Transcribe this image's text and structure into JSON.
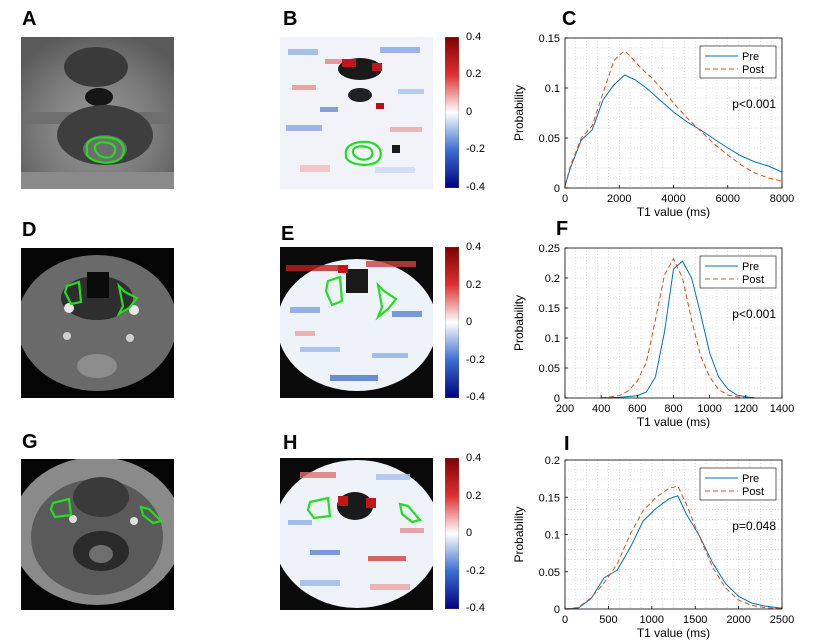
{
  "panels": {
    "letters": [
      "A",
      "B",
      "C",
      "D",
      "E",
      "F",
      "G",
      "H",
      "I"
    ]
  },
  "colorbar": {
    "ticks": [
      "0.4",
      "0.2",
      "0",
      "-0.2",
      "-0.4"
    ],
    "colors": {
      "top": "#7f0000",
      "upper": "#e03030",
      "mid": "#ffffff",
      "lower": "#3a6fd0",
      "bottom": "#00007f"
    }
  },
  "colors": {
    "contour": "#22dd22",
    "pre": "#0072bd",
    "post": "#d95319"
  },
  "chart_data": [
    {
      "type": "line",
      "panel": "C",
      "xlabel": "T1 value (ms)",
      "ylabel": "Probability",
      "xlim": [
        0,
        8000
      ],
      "ylim": [
        0,
        0.15
      ],
      "xticks": [
        "0",
        "2000",
        "4000",
        "6000",
        "8000"
      ],
      "yticks": [
        "0",
        "0.05",
        "0.1",
        "0.15"
      ],
      "pvalue": "p<0.001",
      "legend": [
        "Pre",
        "Post"
      ],
      "series": [
        {
          "name": "Pre",
          "x": [
            0,
            200,
            600,
            1000,
            1400,
            1800,
            2200,
            2600,
            3000,
            3500,
            4000,
            4500,
            5000,
            5500,
            6000,
            6500,
            7000,
            7500,
            8000
          ],
          "values": [
            0.002,
            0.02,
            0.048,
            0.058,
            0.088,
            0.103,
            0.113,
            0.108,
            0.1,
            0.088,
            0.076,
            0.066,
            0.058,
            0.049,
            0.04,
            0.032,
            0.026,
            0.022,
            0.016
          ]
        },
        {
          "name": "Post",
          "x": [
            0,
            200,
            600,
            1000,
            1400,
            1800,
            2000,
            2200,
            2400,
            2800,
            3200,
            3600,
            4000,
            4500,
            5000,
            5500,
            6000,
            6500,
            7000,
            7500,
            8000
          ],
          "values": [
            0.002,
            0.022,
            0.05,
            0.062,
            0.095,
            0.127,
            0.133,
            0.137,
            0.132,
            0.12,
            0.11,
            0.098,
            0.085,
            0.07,
            0.057,
            0.044,
            0.033,
            0.023,
            0.015,
            0.01,
            0.007
          ]
        }
      ]
    },
    {
      "type": "line",
      "panel": "F",
      "xlabel": "T1 value (ms)",
      "ylabel": "Probability",
      "xlim": [
        200,
        1400
      ],
      "ylim": [
        0,
        0.25
      ],
      "xticks": [
        "200",
        "400",
        "600",
        "800",
        "1000",
        "1200",
        "1400"
      ],
      "yticks": [
        "0",
        "0.05",
        "0.1",
        "0.15",
        "0.2",
        "0.25"
      ],
      "pvalue": "p<0.001",
      "legend": [
        "Pre",
        "Post"
      ],
      "series": [
        {
          "name": "Pre",
          "x": [
            400,
            500,
            600,
            650,
            700,
            750,
            800,
            850,
            900,
            950,
            1000,
            1050,
            1100,
            1150,
            1200,
            1250
          ],
          "values": [
            0,
            0.001,
            0.004,
            0.01,
            0.035,
            0.11,
            0.215,
            0.228,
            0.2,
            0.14,
            0.075,
            0.035,
            0.015,
            0.005,
            0.002,
            0
          ]
        },
        {
          "name": "Post",
          "x": [
            400,
            500,
            550,
            600,
            650,
            700,
            750,
            800,
            850,
            900,
            950,
            1000,
            1050,
            1100,
            1150,
            1200
          ],
          "values": [
            0,
            0.004,
            0.012,
            0.028,
            0.06,
            0.13,
            0.205,
            0.232,
            0.2,
            0.13,
            0.07,
            0.035,
            0.014,
            0.005,
            0.002,
            0
          ]
        }
      ]
    },
    {
      "type": "line",
      "panel": "I",
      "xlabel": "T1 value (ms)",
      "ylabel": "Probability",
      "xlim": [
        0,
        2500
      ],
      "ylim": [
        0,
        0.2
      ],
      "xticks": [
        "0",
        "500",
        "1000",
        "1500",
        "2000",
        "2500"
      ],
      "yticks": [
        "0",
        "0.05",
        "0.1",
        "0.15",
        "0.2"
      ],
      "pvalue": "p=0.048",
      "legend": [
        "Pre",
        "Post"
      ],
      "series": [
        {
          "name": "Pre",
          "x": [
            0,
            150,
            300,
            450,
            600,
            750,
            900,
            1050,
            1200,
            1300,
            1400,
            1550,
            1700,
            1850,
            2000,
            2150,
            2300,
            2500
          ],
          "values": [
            0,
            0.001,
            0.014,
            0.042,
            0.052,
            0.082,
            0.118,
            0.135,
            0.148,
            0.152,
            0.127,
            0.098,
            0.062,
            0.034,
            0.017,
            0.008,
            0.004,
            0.001
          ]
        },
        {
          "name": "Post",
          "x": [
            0,
            150,
            300,
            450,
            600,
            750,
            900,
            1050,
            1200,
            1300,
            1400,
            1550,
            1700,
            1850,
            2000,
            2150,
            2300,
            2500
          ],
          "values": [
            0,
            0.002,
            0.015,
            0.035,
            0.06,
            0.1,
            0.132,
            0.15,
            0.162,
            0.165,
            0.14,
            0.097,
            0.056,
            0.028,
            0.012,
            0.005,
            0.002,
            0
          ]
        }
      ]
    }
  ]
}
